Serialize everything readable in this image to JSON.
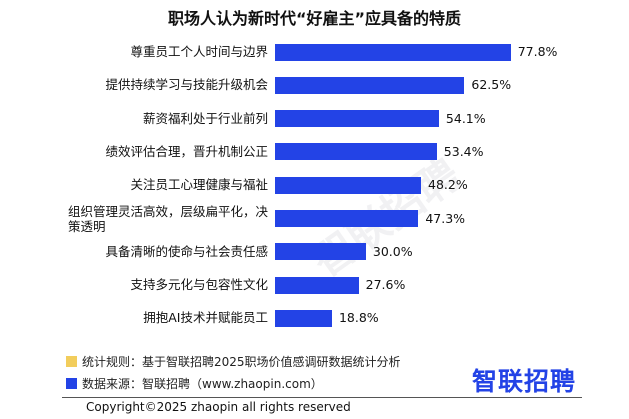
{
  "chart_data": {
    "type": "bar",
    "orientation": "horizontal",
    "title": "职场人认为新时代“好雇主”应具备的特质",
    "categories": [
      "尊重员工个人时间与边界",
      "提供持续学习与技能升级机会",
      "薪资福利处于行业前列",
      "绩效评估合理，晋升机制公正",
      "关注员工心理健康与福祉",
      "组织管理灵活高效，层级扁平化，决策透明",
      "具备清晰的使命与社会责任感",
      "支持多元化与包容性文化",
      "拥抱AI技术并赋能员工"
    ],
    "values": [
      77.8,
      62.5,
      54.1,
      53.4,
      48.2,
      47.3,
      30.0,
      27.6,
      18.8
    ],
    "value_labels": [
      "77.8%",
      "62.5%",
      "54.1%",
      "53.4%",
      "48.2%",
      "47.3%",
      "30.0%",
      "27.6%",
      "18.8%"
    ],
    "color": "#2343e6"
  },
  "footer": {
    "rule": "统计规则：基于智联招聘2025职场价值感调研数据统计分析",
    "rule_color": "#f2cd5c",
    "source": "数据来源：智联招聘（www.zhaopin.com）",
    "source_color": "#2343e6",
    "logo": "智联招聘",
    "copyright": "Copyright©2025 zhaopin all rights reserved"
  },
  "watermark": "智联招聘"
}
